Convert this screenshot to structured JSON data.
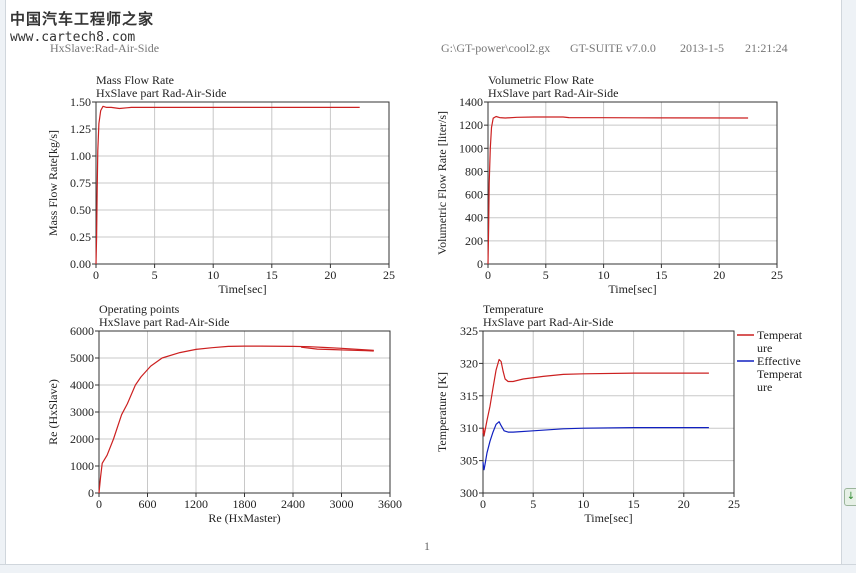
{
  "header": {
    "name": "HxSlave:Rad-Air-Side",
    "file": "G:\\GT-power\\cool2.gx",
    "version": "GT-SUITE v7.0.0",
    "date": "2013-1-5",
    "time": "21:21:24"
  },
  "watermark": {
    "line1": "中国汽车工程师之家",
    "line2": "www.cartech8.com"
  },
  "page_number": "1",
  "chart_data": [
    {
      "type": "line",
      "title": "Mass Flow Rate",
      "subtitle": "HxSlave part Rad-Air-Side",
      "xlabel": "Time[sec]",
      "ylabel": "Mass Flow Rate[kg/s]",
      "xlim": [
        0,
        25
      ],
      "ylim": [
        0,
        1.5
      ],
      "xticks": [
        0,
        5,
        10,
        15,
        20,
        25
      ],
      "yticks": [
        0,
        0.25,
        0.5,
        0.75,
        1.0,
        1.25,
        1.5
      ],
      "ytick_labels": [
        "0.00",
        "0.25",
        "0.50",
        "0.75",
        "1.00",
        "1.25",
        "1.50"
      ],
      "grid": true,
      "series": [
        {
          "color": "#cc2020",
          "points": [
            [
              0,
              0
            ],
            [
              0.05,
              0.25
            ],
            [
              0.1,
              0.7
            ],
            [
              0.15,
              1.05
            ],
            [
              0.25,
              1.3
            ],
            [
              0.4,
              1.42
            ],
            [
              0.6,
              1.46
            ],
            [
              0.9,
              1.45
            ],
            [
              1.3,
              1.45
            ],
            [
              2.0,
              1.44
            ],
            [
              3,
              1.45
            ],
            [
              6,
              1.45
            ],
            [
              10,
              1.45
            ],
            [
              15,
              1.45
            ],
            [
              22.5,
              1.45
            ]
          ]
        }
      ]
    },
    {
      "type": "line",
      "title": "Volumetric Flow Rate",
      "subtitle": "HxSlave part Rad-Air-Side",
      "xlabel": "Time[sec]",
      "ylabel": "Volumetric Flow Rate [liter/s]",
      "xlim": [
        0,
        25
      ],
      "ylim": [
        0,
        1400
      ],
      "xticks": [
        0,
        5,
        10,
        15,
        20,
        25
      ],
      "yticks": [
        0,
        200,
        400,
        600,
        800,
        1000,
        1200,
        1400
      ],
      "ytick_labels": [
        "0",
        "200",
        "400",
        "600",
        "800",
        "1000",
        "1200",
        "1400"
      ],
      "grid": true,
      "series": [
        {
          "color": "#cc2020",
          "points": [
            [
              0,
              0
            ],
            [
              0.05,
              300
            ],
            [
              0.1,
              700
            ],
            [
              0.2,
              1000
            ],
            [
              0.3,
              1180
            ],
            [
              0.45,
              1260
            ],
            [
              0.7,
              1275
            ],
            [
              1.0,
              1265
            ],
            [
              1.5,
              1262
            ],
            [
              2.5,
              1268
            ],
            [
              4,
              1270
            ],
            [
              6.5,
              1270
            ],
            [
              7,
              1265
            ],
            [
              10,
              1264
            ],
            [
              15,
              1263
            ],
            [
              22.5,
              1262
            ]
          ]
        }
      ]
    },
    {
      "type": "line",
      "title": "Operating points",
      "subtitle": "HxSlave part Rad-Air-Side",
      "xlabel": "Re (HxMaster)",
      "ylabel": "Re (HxSlave)",
      "xlim": [
        0,
        3600
      ],
      "ylim": [
        0,
        6000
      ],
      "xticks": [
        0,
        600,
        1200,
        1800,
        2400,
        3000,
        3600
      ],
      "yticks": [
        0,
        1000,
        2000,
        3000,
        4000,
        5000,
        6000
      ],
      "ytick_labels": [
        "0",
        "1000",
        "2000",
        "3000",
        "4000",
        "5000",
        "6000"
      ],
      "grid": true,
      "series": [
        {
          "color": "#cc2020",
          "points": [
            [
              0,
              0
            ],
            [
              20,
              600
            ],
            [
              40,
              1100
            ],
            [
              100,
              1400
            ],
            [
              180,
              2000
            ],
            [
              280,
              2900
            ],
            [
              350,
              3300
            ],
            [
              450,
              4000
            ],
            [
              520,
              4300
            ],
            [
              640,
              4700
            ],
            [
              780,
              5000
            ],
            [
              1000,
              5200
            ],
            [
              1200,
              5320
            ],
            [
              1400,
              5380
            ],
            [
              1600,
              5430
            ],
            [
              1800,
              5440
            ],
            [
              2000,
              5440
            ],
            [
              2400,
              5430
            ],
            [
              2600,
              5420
            ],
            [
              2800,
              5390
            ],
            [
              3000,
              5360
            ],
            [
              3200,
              5320
            ],
            [
              3400,
              5280
            ]
          ]
        },
        {
          "color": "#cc2020",
          "points": [
            [
              2500,
              5400
            ],
            [
              2700,
              5330
            ],
            [
              2900,
              5310
            ],
            [
              3100,
              5290
            ],
            [
              3300,
              5270
            ],
            [
              3400,
              5260
            ]
          ]
        }
      ]
    },
    {
      "type": "line",
      "title": "Temperature",
      "subtitle": "HxSlave part Rad-Air-Side",
      "xlabel": "Time[sec]",
      "ylabel": "Temperature [K]",
      "xlim": [
        0,
        25
      ],
      "ylim": [
        300,
        325
      ],
      "xticks": [
        0,
        5,
        10,
        15,
        20,
        25
      ],
      "yticks": [
        300,
        305,
        310,
        315,
        320,
        325
      ],
      "ytick_labels": [
        "300",
        "305",
        "310",
        "315",
        "320",
        "325"
      ],
      "grid": true,
      "legend": [
        "Temperature",
        "Effective Temperature"
      ],
      "series": [
        {
          "name": "Temperature",
          "color": "#cc2020",
          "points": [
            [
              0,
              309.2
            ],
            [
              0.05,
              310.0
            ],
            [
              0.1,
              308.8
            ],
            [
              0.2,
              309.6
            ],
            [
              0.4,
              311.2
            ],
            [
              0.7,
              313.4
            ],
            [
              1.0,
              316.2
            ],
            [
              1.3,
              319.0
            ],
            [
              1.6,
              320.6
            ],
            [
              1.8,
              320.3
            ],
            [
              2.0,
              318.8
            ],
            [
              2.2,
              317.6
            ],
            [
              2.5,
              317.2
            ],
            [
              3.0,
              317.2
            ],
            [
              4,
              317.6
            ],
            [
              6,
              318.0
            ],
            [
              8,
              318.3
            ],
            [
              10,
              318.4
            ],
            [
              15,
              318.5
            ],
            [
              22.5,
              318.5
            ]
          ]
        },
        {
          "name": "Effective Temperature",
          "color": "#1020c0",
          "points": [
            [
              0,
              304.8
            ],
            [
              0.05,
              304.0
            ],
            [
              0.1,
              303.6
            ],
            [
              0.2,
              304.4
            ],
            [
              0.4,
              306.2
            ],
            [
              0.7,
              308.0
            ],
            [
              1.0,
              309.4
            ],
            [
              1.3,
              310.6
            ],
            [
              1.6,
              311.0
            ],
            [
              1.8,
              310.4
            ],
            [
              2.1,
              309.6
            ],
            [
              2.5,
              309.4
            ],
            [
              3,
              309.4
            ],
            [
              5,
              309.6
            ],
            [
              8,
              309.9
            ],
            [
              10,
              310.0
            ],
            [
              15,
              310.1
            ],
            [
              22.5,
              310.1
            ]
          ]
        }
      ]
    }
  ]
}
